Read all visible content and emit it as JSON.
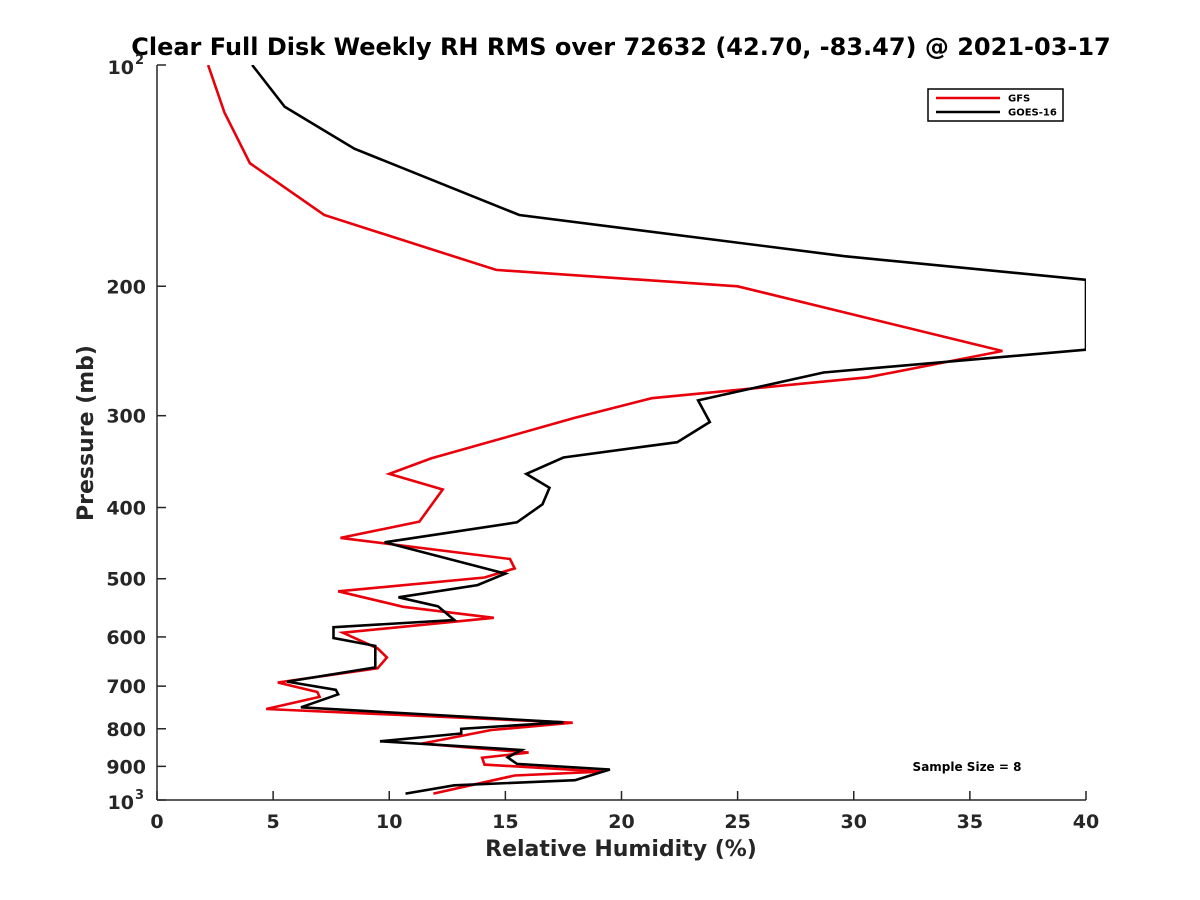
{
  "chart_data": {
    "type": "line",
    "title": "Clear Full Disk Weekly RH RMS over 72632 (42.70, -83.47) @ 2021-03-17",
    "xlabel": "Relative Humidity (%)",
    "ylabel": "Pressure (mb)",
    "xlim": [
      0,
      40
    ],
    "ylim": [
      100,
      1000
    ],
    "yscale": "log",
    "y_reversed": true,
    "x_ticks": [
      "0",
      "5",
      "10",
      "15",
      "20",
      "25",
      "30",
      "35",
      "40"
    ],
    "y_ticks": [
      {
        "value": 100,
        "base": "10",
        "exp": "2"
      },
      {
        "value": 200,
        "label": "200"
      },
      {
        "value": 300,
        "label": "300"
      },
      {
        "value": 400,
        "label": "400"
      },
      {
        "value": 500,
        "label": "500"
      },
      {
        "value": 600,
        "label": "600"
      },
      {
        "value": 700,
        "label": "700"
      },
      {
        "value": 800,
        "label": "800"
      },
      {
        "value": 900,
        "label": "900"
      },
      {
        "value": 1000,
        "base": "10",
        "exp": "3"
      }
    ],
    "legend_position": "top-right",
    "series": [
      {
        "name": "GFS",
        "color": "#e8000b",
        "points": [
          [
            2.2,
            100
          ],
          [
            2.9,
            116
          ],
          [
            4.0,
            136
          ],
          [
            7.2,
            160
          ],
          [
            14.6,
            190
          ],
          [
            25.0,
            200
          ],
          [
            36.4,
            245
          ],
          [
            30.6,
            266
          ],
          [
            21.3,
            284
          ],
          [
            18.0,
            302
          ],
          [
            11.8,
            343
          ],
          [
            10.0,
            360
          ],
          [
            12.3,
            378
          ],
          [
            11.3,
            418
          ],
          [
            7.9,
            440
          ],
          [
            15.2,
            470
          ],
          [
            15.4,
            484
          ],
          [
            14.1,
            498
          ],
          [
            7.8,
            520
          ],
          [
            10.6,
            546
          ],
          [
            14.5,
            565
          ],
          [
            8.0,
            592
          ],
          [
            9.5,
            622
          ],
          [
            9.9,
            640
          ],
          [
            9.5,
            662
          ],
          [
            5.2,
            692
          ],
          [
            6.9,
            713
          ],
          [
            7.0,
            724
          ],
          [
            4.7,
            752
          ],
          [
            17.9,
            785
          ],
          [
            14.4,
            803
          ],
          [
            11.4,
            838
          ],
          [
            16.0,
            862
          ],
          [
            14.0,
            876
          ],
          [
            14.1,
            895
          ],
          [
            19.2,
            915
          ],
          [
            15.4,
            926
          ],
          [
            11.9,
            980
          ]
        ]
      },
      {
        "name": "GOES-16",
        "color": "#000000",
        "points": [
          [
            4.1,
            100
          ],
          [
            5.5,
            114
          ],
          [
            8.5,
            130
          ],
          [
            15.6,
            160
          ],
          [
            29.6,
            182
          ],
          [
            40.0,
            196
          ],
          [
            40.0,
            244
          ],
          [
            28.7,
            262
          ],
          [
            23.3,
            286
          ],
          [
            23.8,
            306
          ],
          [
            22.4,
            326
          ],
          [
            17.5,
            342
          ],
          [
            15.9,
            360
          ],
          [
            16.9,
            376
          ],
          [
            16.6,
            396
          ],
          [
            15.5,
            419
          ],
          [
            9.8,
            446
          ],
          [
            15.0,
            492
          ],
          [
            13.8,
            510
          ],
          [
            10.4,
            530
          ],
          [
            12.1,
            545
          ],
          [
            12.8,
            569
          ],
          [
            7.6,
            582
          ],
          [
            7.6,
            602
          ],
          [
            9.4,
            617
          ],
          [
            9.4,
            660
          ],
          [
            5.6,
            690
          ],
          [
            7.7,
            708
          ],
          [
            7.8,
            718
          ],
          [
            6.2,
            748
          ],
          [
            17.5,
            784
          ],
          [
            13.1,
            800
          ],
          [
            13.1,
            812
          ],
          [
            9.6,
            832
          ],
          [
            15.7,
            855
          ],
          [
            15.1,
            875
          ],
          [
            15.5,
            893
          ],
          [
            19.5,
            909
          ],
          [
            18.0,
            940
          ],
          [
            12.8,
            955
          ],
          [
            10.7,
            980
          ]
        ]
      }
    ],
    "annotation": "Sample Size = 8"
  }
}
